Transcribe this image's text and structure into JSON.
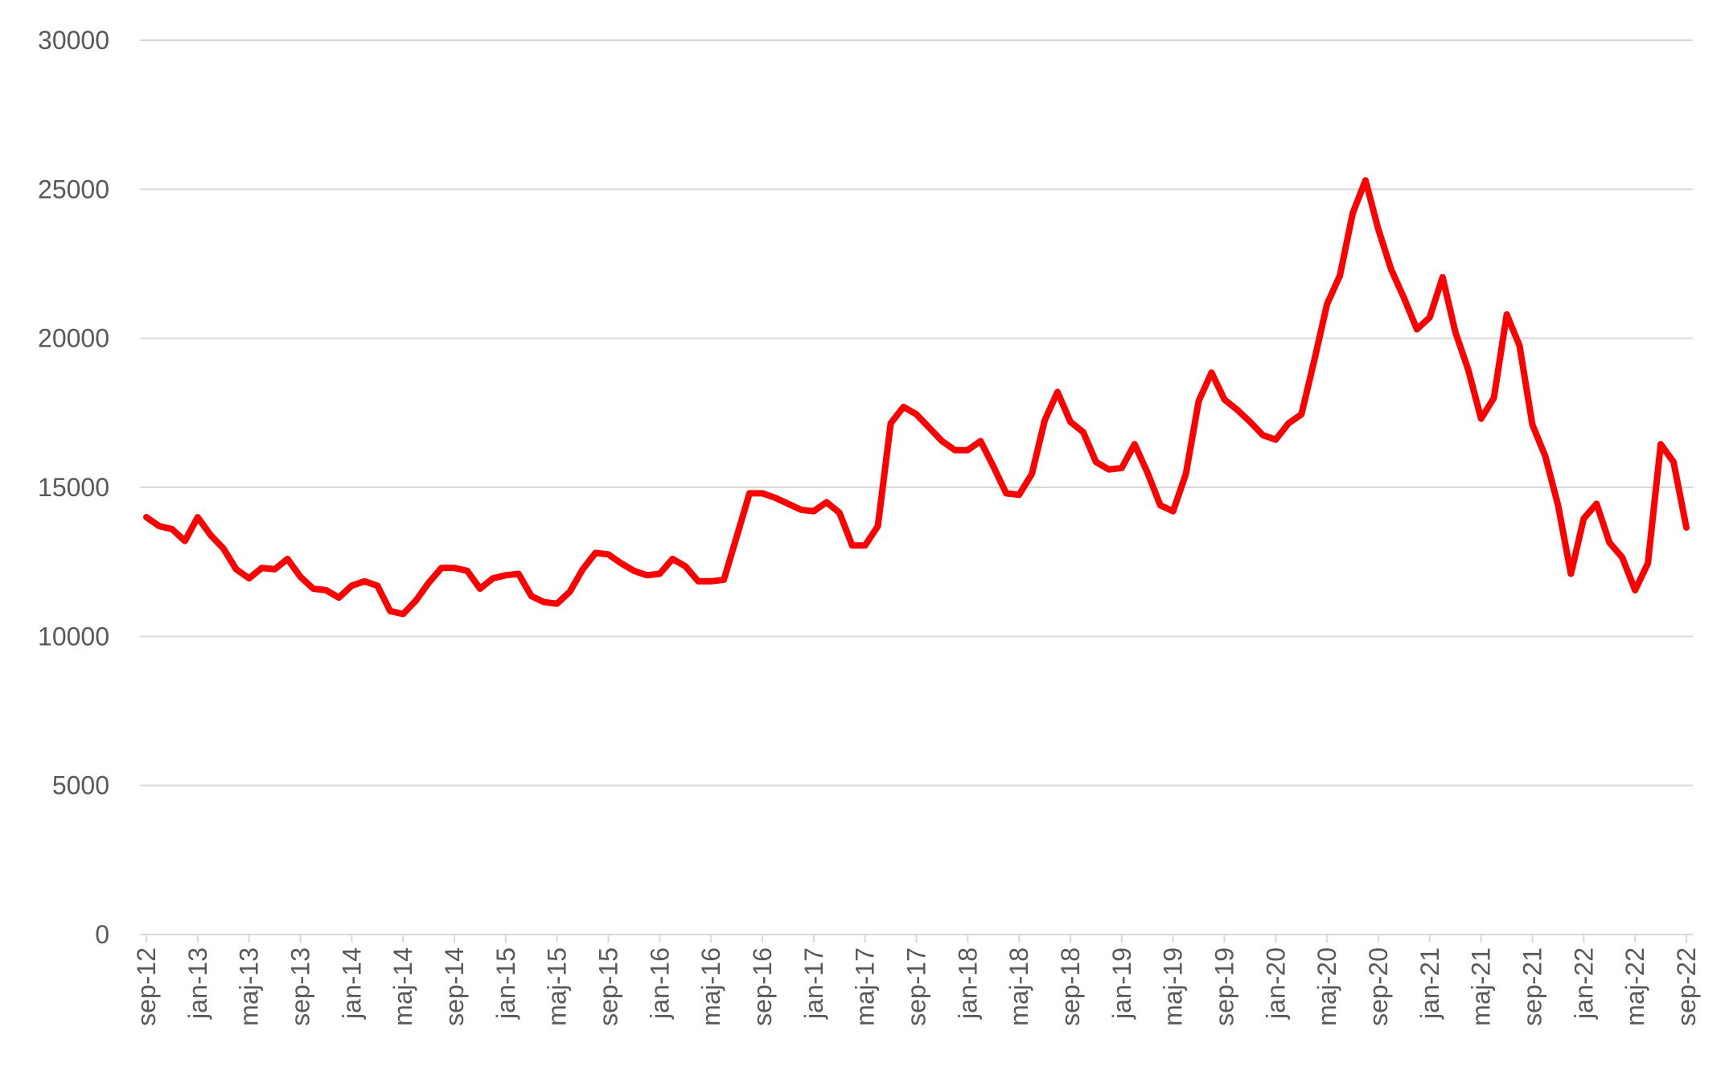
{
  "chart_data": {
    "type": "line",
    "title": "",
    "xlabel": "",
    "ylabel": "",
    "ylim": [
      0,
      30000
    ],
    "yticks": [
      0,
      5000,
      10000,
      15000,
      20000,
      25000,
      30000
    ],
    "grid": "horizontal",
    "legend": "none",
    "line_color": "#ff0000",
    "grid_color": "#d9d9d9",
    "label_color": "#595959",
    "x_tick_labels": [
      "sep-12",
      "jan-13",
      "maj-13",
      "sep-13",
      "jan-14",
      "maj-14",
      "sep-14",
      "jan-15",
      "maj-15",
      "sep-15",
      "jan-16",
      "maj-16",
      "sep-16",
      "jan-17",
      "maj-17",
      "sep-17",
      "jan-18",
      "maj-18",
      "sep-18",
      "jan-19",
      "maj-19",
      "sep-19",
      "jan-20",
      "maj-20",
      "sep-20",
      "jan-21",
      "maj-21",
      "sep-21",
      "jan-22",
      "maj-22",
      "sep-22"
    ],
    "x_start": "2012-09",
    "x_end": "2022-09",
    "series": [
      {
        "values": [
          14000,
          13700,
          13600,
          13200,
          14000,
          13400,
          12950,
          12250,
          11950,
          12300,
          12250,
          12600,
          12000,
          11600,
          11550,
          11300,
          11700,
          11850,
          11700,
          10850,
          10750,
          11200,
          11800,
          12300,
          12300,
          12200,
          11600,
          11950,
          12050,
          12100,
          11350,
          11150,
          11100,
          11500,
          12250,
          12800,
          12750,
          12450,
          12200,
          12050,
          12100,
          12600,
          12350,
          11850,
          11850,
          11900,
          13350,
          14800,
          14800,
          14650,
          14450,
          14250,
          14200,
          14500,
          14150,
          13050,
          13050,
          13700,
          17150,
          17700,
          17450,
          17000,
          16550,
          16250,
          16250,
          16550,
          15700,
          14800,
          14750,
          15450,
          17250,
          18200,
          17200,
          16850,
          15850,
          15600,
          15650,
          16450,
          15500,
          14400,
          14200,
          15450,
          17900,
          18850,
          17950,
          17600,
          17200,
          16750,
          16600,
          17150,
          17450,
          19250,
          21150,
          22100,
          24200,
          25300,
          23650,
          22300,
          21350,
          20300,
          20700,
          22050,
          20200,
          18950,
          17300,
          18000,
          20800,
          19750,
          17100,
          16050,
          14400,
          12100,
          13950,
          14450,
          13150,
          12650,
          11550,
          12450,
          16450,
          15850,
          13650
        ]
      }
    ]
  }
}
